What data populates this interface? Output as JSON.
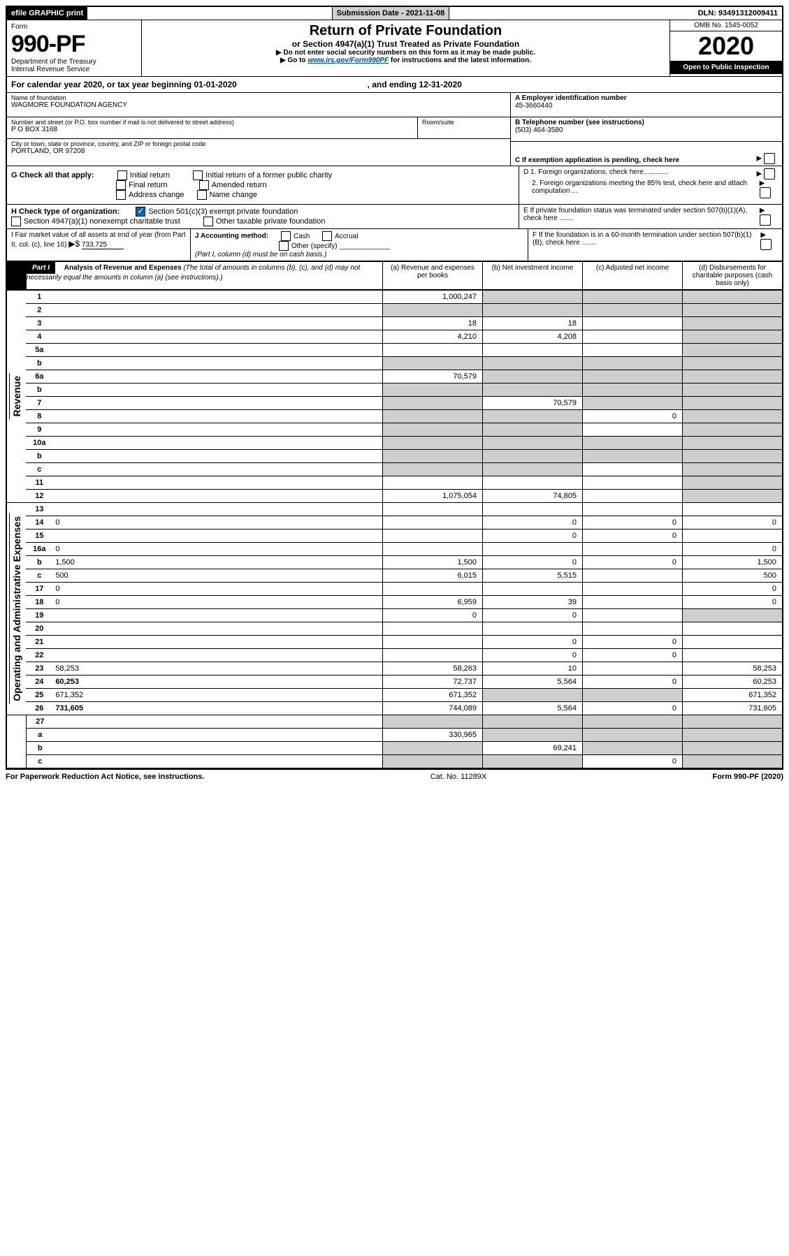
{
  "topbar": {
    "efile": "efile GRAPHIC print",
    "submission": "Submission Date - 2021-11-08",
    "dln": "DLN: 93491312009411"
  },
  "header": {
    "form_label": "Form",
    "form_number": "990-PF",
    "dept": "Department of the Treasury",
    "irs": "Internal Revenue Service",
    "title": "Return of Private Foundation",
    "subtitle": "or Section 4947(a)(1) Trust Treated as Private Foundation",
    "note1": "▶ Do not enter social security numbers on this form as it may be made public.",
    "note2_pre": "▶ Go to ",
    "note2_link": "www.irs.gov/Form990PF",
    "note2_post": " for instructions and the latest information.",
    "omb": "OMB No. 1545-0052",
    "year": "2020",
    "open": "Open to Public Inspection"
  },
  "calendar": {
    "line_pre": "For calendar year 2020, or tax year beginning ",
    "begin": "01-01-2020",
    "mid": " , and ending ",
    "end": "12-31-2020"
  },
  "info": {
    "name_label": "Name of foundation",
    "name": "WAGMORE FOUNDATION AGENCY",
    "addr_label": "Number and street (or P.O. box number if mail is not delivered to street address)",
    "addr": "P O BOX 3168",
    "room_label": "Room/suite",
    "city_label": "City or town, state or province, country, and ZIP or foreign postal code",
    "city": "PORTLAND, OR  97208",
    "a_label": "A Employer identification number",
    "a_val": "45-3660440",
    "b_label": "B Telephone number (see instructions)",
    "b_val": "(503) 464-3580",
    "c_label": "C If exemption application is pending, check here"
  },
  "checkG": {
    "label": "G Check all that apply:",
    "opts": [
      "Initial return",
      "Final return",
      "Address change",
      "Initial return of a former public charity",
      "Amended return",
      "Name change"
    ]
  },
  "checkH": {
    "label": "H Check type of organization:",
    "o1": "Section 501(c)(3) exempt private foundation",
    "o2": "Section 4947(a)(1) nonexempt charitable trust",
    "o3": "Other taxable private foundation"
  },
  "sectionD": {
    "d1": "D 1. Foreign organizations, check here.............",
    "d2": "2. Foreign organizations meeting the 85% test, check here and attach computation ...",
    "e": "E  If private foundation status was terminated under section 507(b)(1)(A), check here .......",
    "f": "F  If the foundation is in a 60-month termination under section 507(b)(1)(B), check here ......."
  },
  "sectionI": {
    "label": "I Fair market value of all assets at end of year (from Part II, col. (c), line 16)",
    "arrow": "▶$",
    "val": "733,725"
  },
  "sectionJ": {
    "label": "J Accounting method:",
    "cash": "Cash",
    "accrual": "Accrual",
    "other": "Other (specify)",
    "note": "(Part I, column (d) must be on cash basis.)"
  },
  "part1": {
    "label": "Part I",
    "title": "Analysis of Revenue and Expenses",
    "desc": " (The total of amounts in columns (b), (c), and (d) may not necessarily equal the amounts in column (a) (see instructions).)",
    "colA": "(a) Revenue and expenses per books",
    "colB": "(b) Net investment income",
    "colC": "(c) Adjusted net income",
    "colD": "(d) Disbursements for charitable purposes (cash basis only)"
  },
  "sides": {
    "rev": "Revenue",
    "exp": "Operating and Administrative Expenses"
  },
  "rows": [
    {
      "n": "1",
      "d": "",
      "a": "1,000,247",
      "b": "",
      "c": "",
      "sb": true,
      "sc": true,
      "sd": true
    },
    {
      "n": "2",
      "d": "",
      "a": "",
      "b": "",
      "c": "",
      "sa": true,
      "sb": true,
      "sc": true,
      "sd": true
    },
    {
      "n": "3",
      "d": "",
      "a": "18",
      "b": "18",
      "c": "",
      "sd": true
    },
    {
      "n": "4",
      "d": "",
      "a": "4,210",
      "b": "4,208",
      "c": "",
      "sd": true
    },
    {
      "n": "5a",
      "d": "",
      "a": "",
      "b": "",
      "c": "",
      "sd": true
    },
    {
      "n": "b",
      "d": "",
      "a": "",
      "b": "",
      "c": "",
      "sa": true,
      "sb": true,
      "sc": true,
      "sd": true
    },
    {
      "n": "6a",
      "d": "",
      "a": "70,579",
      "b": "",
      "c": "",
      "sb": true,
      "sc": true,
      "sd": true
    },
    {
      "n": "b",
      "d": "",
      "a": "",
      "b": "",
      "c": "",
      "sa": true,
      "sb": true,
      "sc": true,
      "sd": true
    },
    {
      "n": "7",
      "d": "",
      "a": "",
      "b": "70,579",
      "c": "",
      "sa": true,
      "sc": true,
      "sd": true
    },
    {
      "n": "8",
      "d": "",
      "a": "",
      "b": "",
      "c": "0",
      "sa": true,
      "sb": true,
      "sd": true
    },
    {
      "n": "9",
      "d": "",
      "a": "",
      "b": "",
      "c": "",
      "sa": true,
      "sb": true,
      "sd": true
    },
    {
      "n": "10a",
      "d": "",
      "a": "",
      "b": "",
      "c": "",
      "sa": true,
      "sb": true,
      "sc": true,
      "sd": true
    },
    {
      "n": "b",
      "d": "",
      "a": "",
      "b": "",
      "c": "",
      "sa": true,
      "sb": true,
      "sc": true,
      "sd": true
    },
    {
      "n": "c",
      "d": "",
      "a": "",
      "b": "",
      "c": "",
      "sa": true,
      "sb": true,
      "sd": true
    },
    {
      "n": "11",
      "d": "",
      "a": "",
      "b": "",
      "c": "",
      "sd": true
    },
    {
      "n": "12",
      "d": "",
      "a": "1,075,054",
      "b": "74,805",
      "c": "",
      "sd": true,
      "bold": true
    }
  ],
  "exp_rows": [
    {
      "n": "13",
      "d": "",
      "a": "",
      "b": "",
      "c": ""
    },
    {
      "n": "14",
      "d": "0",
      "a": "",
      "b": "0",
      "c": "0"
    },
    {
      "n": "15",
      "d": "",
      "a": "",
      "b": "0",
      "c": "0"
    },
    {
      "n": "16a",
      "d": "0",
      "a": "",
      "b": "",
      "c": ""
    },
    {
      "n": "b",
      "d": "1,500",
      "a": "1,500",
      "b": "0",
      "c": "0"
    },
    {
      "n": "c",
      "d": "500",
      "a": "6,015",
      "b": "5,515",
      "c": ""
    },
    {
      "n": "17",
      "d": "0",
      "a": "",
      "b": "",
      "c": ""
    },
    {
      "n": "18",
      "d": "0",
      "a": "6,959",
      "b": "39",
      "c": ""
    },
    {
      "n": "19",
      "d": "",
      "a": "0",
      "b": "0",
      "c": "",
      "sd": true
    },
    {
      "n": "20",
      "d": "",
      "a": "",
      "b": "",
      "c": ""
    },
    {
      "n": "21",
      "d": "",
      "a": "",
      "b": "0",
      "c": "0"
    },
    {
      "n": "22",
      "d": "",
      "a": "",
      "b": "0",
      "c": "0"
    },
    {
      "n": "23",
      "d": "58,253",
      "a": "58,263",
      "b": "10",
      "c": ""
    },
    {
      "n": "24",
      "d": "60,253",
      "a": "72,737",
      "b": "5,564",
      "c": "0",
      "bold": true
    },
    {
      "n": "25",
      "d": "671,352",
      "a": "671,352",
      "b": "",
      "c": "",
      "sb": true,
      "sc": true
    },
    {
      "n": "26",
      "d": "731,605",
      "a": "744,089",
      "b": "5,564",
      "c": "0",
      "bold": true
    }
  ],
  "final_rows": [
    {
      "n": "27",
      "d": "",
      "a": "",
      "b": "",
      "c": "",
      "sa": true,
      "sb": true,
      "sc": true,
      "sd": true
    },
    {
      "n": "a",
      "d": "",
      "a": "330,965",
      "b": "",
      "c": "",
      "sb": true,
      "sc": true,
      "sd": true,
      "bold": true
    },
    {
      "n": "b",
      "d": "",
      "a": "",
      "b": "69,241",
      "c": "",
      "sa": true,
      "sc": true,
      "sd": true,
      "bold": true
    },
    {
      "n": "c",
      "d": "",
      "a": "",
      "b": "",
      "c": "0",
      "sa": true,
      "sb": true,
      "sd": true,
      "bold": true
    }
  ],
  "footer": {
    "left": "For Paperwork Reduction Act Notice, see instructions.",
    "mid": "Cat. No. 11289X",
    "right": "Form 990-PF (2020)"
  }
}
